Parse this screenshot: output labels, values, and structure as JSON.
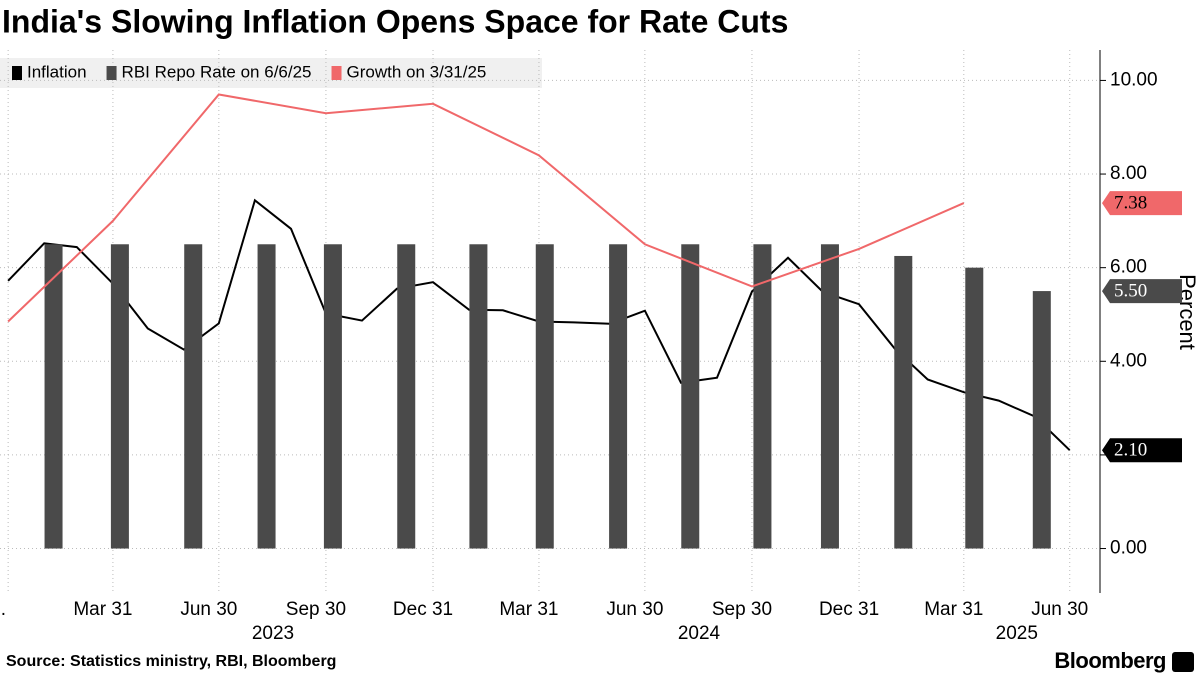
{
  "chart_data": {
    "type": "combo",
    "title": "India's Slowing Inflation Opens Space for Rate Cuts",
    "source": "Source: Statistics ministry, RBI, Bloomberg",
    "brand": "Bloomberg",
    "y_label": "Percent",
    "xlim": [
      "2022-12-24",
      "2025-07-26"
    ],
    "ylim": [
      -0.95,
      10.65
    ],
    "yticks": [
      {
        "value": 0,
        "label": "0.00"
      },
      {
        "value": 2,
        "label": "2.00"
      },
      {
        "value": 4,
        "label": "4.00"
      },
      {
        "value": 6,
        "label": "6.00"
      },
      {
        "value": 8,
        "label": "8.00"
      },
      {
        "value": 10,
        "label": "10.00"
      }
    ],
    "xticks": [
      {
        "value": "2022-12-31",
        "label": "..."
      },
      {
        "value": "2023-03-31",
        "label": "Mar 31"
      },
      {
        "value": "2023-06-30",
        "label": "Jun 30"
      },
      {
        "value": "2023-09-30",
        "label": "Sep 30"
      },
      {
        "value": "2023-12-31",
        "label": "Dec 31"
      },
      {
        "value": "2024-03-31",
        "label": "Mar 31"
      },
      {
        "value": "2024-06-30",
        "label": "Jun 30"
      },
      {
        "value": "2024-09-30",
        "label": "Sep 30"
      },
      {
        "value": "2024-12-31",
        "label": "Dec 31"
      },
      {
        "value": "2025-03-31",
        "label": "Mar 31"
      },
      {
        "value": "2025-06-30",
        "label": "Jun 30"
      }
    ],
    "x_years": [
      "2023",
      "2024",
      "2025"
    ],
    "grid": true,
    "legend": "top-left",
    "series": [
      {
        "name": "Inflation",
        "type": "line",
        "color": "#000000",
        "x": [
          "2022-12-31",
          "2023-01-31",
          "2023-02-28",
          "2023-03-31",
          "2023-04-30",
          "2023-05-31",
          "2023-06-30",
          "2023-07-31",
          "2023-08-31",
          "2023-09-30",
          "2023-10-31",
          "2023-11-30",
          "2023-12-31",
          "2024-01-31",
          "2024-02-29",
          "2024-03-31",
          "2024-04-30",
          "2024-05-31",
          "2024-06-30",
          "2024-07-31",
          "2024-08-31",
          "2024-09-30",
          "2024-10-31",
          "2024-11-30",
          "2024-12-31",
          "2025-01-31",
          "2025-02-28",
          "2025-03-31",
          "2025-04-30",
          "2025-05-31",
          "2025-06-30"
        ],
        "values": [
          5.72,
          6.52,
          6.44,
          5.66,
          4.7,
          4.25,
          4.81,
          7.44,
          6.83,
          5.02,
          4.87,
          5.55,
          5.69,
          5.1,
          5.09,
          4.85,
          4.83,
          4.8,
          5.08,
          3.54,
          3.65,
          5.49,
          6.21,
          5.48,
          5.22,
          4.26,
          3.61,
          3.34,
          3.16,
          2.82,
          2.1
        ],
        "value_labels": [
          null,
          null,
          null,
          null,
          null,
          null,
          null,
          null,
          null,
          null,
          null,
          null,
          null,
          null,
          null,
          null,
          null,
          null,
          null,
          null,
          null,
          null,
          null,
          null,
          null,
          null,
          null,
          null,
          null,
          null,
          "2.10"
        ],
        "badge_text": "#ffffff"
      },
      {
        "name": "RBI Repo Rate on 6/6/25",
        "type": "bar",
        "color": "#4a4a4a",
        "x": [
          "2023-02-08",
          "2023-04-06",
          "2023-06-08",
          "2023-08-10",
          "2023-10-06",
          "2023-12-08",
          "2024-02-08",
          "2024-04-05",
          "2024-06-07",
          "2024-08-08",
          "2024-10-09",
          "2024-12-06",
          "2025-02-07",
          "2025-04-09",
          "2025-06-06"
        ],
        "values": [
          6.5,
          6.5,
          6.5,
          6.5,
          6.5,
          6.5,
          6.5,
          6.5,
          6.5,
          6.5,
          6.5,
          6.5,
          6.25,
          6.0,
          5.5
        ],
        "value_labels": [
          null,
          null,
          null,
          null,
          null,
          null,
          null,
          null,
          null,
          null,
          null,
          null,
          null,
          null,
          "5.50"
        ],
        "badge_text": "#ffffff"
      },
      {
        "name": "Growth on 3/31/25",
        "type": "line",
        "color": "#f0686a",
        "x": [
          "2022-12-31",
          "2023-03-31",
          "2023-06-30",
          "2023-09-30",
          "2023-12-31",
          "2024-03-31",
          "2024-06-30",
          "2024-09-30",
          "2024-12-31",
          "2025-03-31"
        ],
        "values": [
          4.85,
          7.0,
          9.7,
          9.3,
          9.5,
          8.4,
          6.5,
          5.6,
          6.4,
          7.38
        ],
        "value_labels": [
          null,
          null,
          null,
          null,
          null,
          null,
          null,
          null,
          null,
          "7.38"
        ],
        "badge_text": "#000000"
      }
    ]
  }
}
